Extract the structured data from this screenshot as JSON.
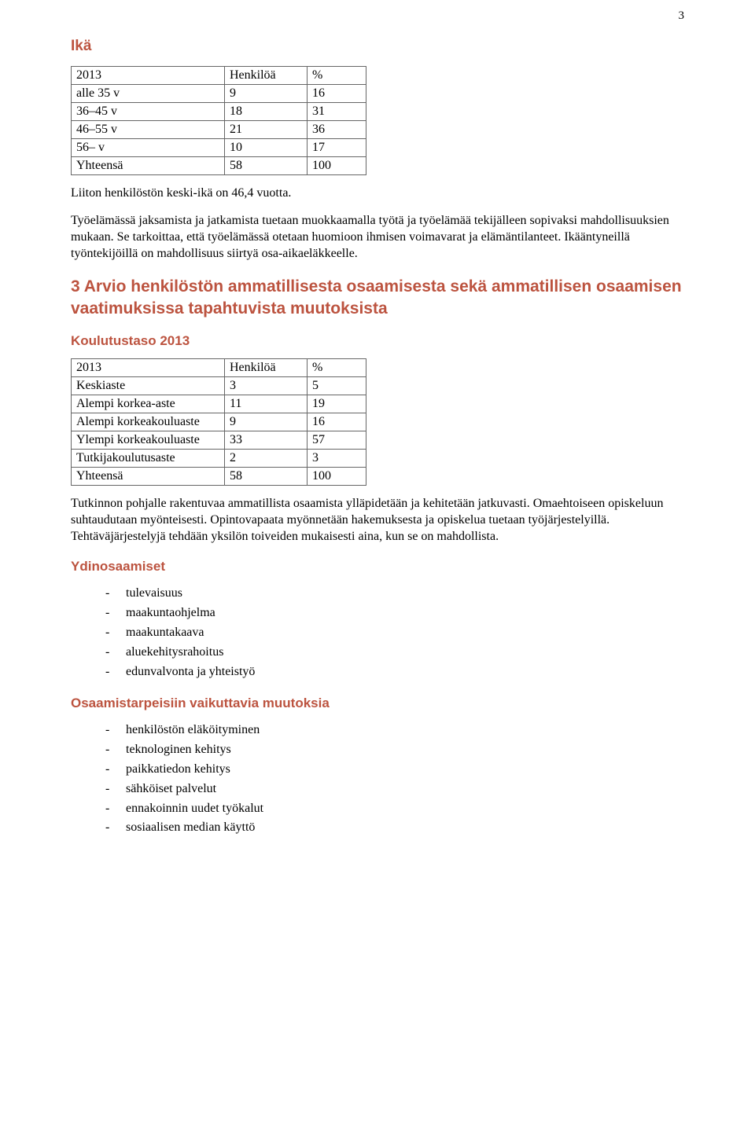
{
  "page_number": "3",
  "heading_ika": "Ikä",
  "table1": {
    "headers": [
      "2013",
      "Henkilöä",
      "%"
    ],
    "rows": [
      [
        "alle 35 v",
        "9",
        "16"
      ],
      [
        "36–45 v",
        "18",
        "31"
      ],
      [
        "46–55 v",
        "21",
        "36"
      ],
      [
        "56– v",
        "10",
        "17"
      ],
      [
        "Yhteensä",
        "58",
        "100"
      ]
    ]
  },
  "para1": "Liiton henkilöstön keski-ikä on 46,4 vuotta.",
  "para2": "Työelämässä jaksamista ja jatkamista tuetaan muokkaamalla työtä ja työelämää tekijälleen sopivaksi mahdollisuuksien mukaan. Se tarkoittaa, että työelämässä otetaan huomioon ihmisen voimavarat ja elämäntilanteet. Ikääntyneillä työntekijöillä on mahdollisuus siirtyä osa-aikaeläkkeelle.",
  "heading_arvio": "3 Arvio henkilöstön ammatillisesta osaamisesta sekä ammatillisen osaamisen vaatimuksissa tapahtuvista muutoksista",
  "sub_koulutustaso": "Koulutustaso 2013",
  "table2": {
    "headers": [
      "2013",
      "Henkilöä",
      "%"
    ],
    "rows": [
      [
        "Keskiaste",
        "3",
        "5"
      ],
      [
        "Alempi korkea-aste",
        "11",
        "19"
      ],
      [
        "Alempi korkeakouluaste",
        "9",
        "16"
      ],
      [
        "Ylempi korkeakouluaste",
        "33",
        "57"
      ],
      [
        "Tutkijakoulutusaste",
        "2",
        "3"
      ],
      [
        "Yhteensä",
        "58",
        "100"
      ]
    ]
  },
  "para3": "Tutkinnon pohjalle rakentuvaa ammatillista osaamista ylläpidetään ja kehitetään jatkuvasti. Omaehtoiseen opiskeluun suhtaudutaan myönteisesti. Opintovapaata myönnetään hakemuksesta ja opiskelua tuetaan työjärjestelyillä. Tehtäväjärjestelyjä tehdään yksilön toiveiden mukaisesti aina, kun se on mahdollista.",
  "sub_ydinosaamiset": "Ydinosaamiset",
  "bullets1": [
    "tulevaisuus",
    "maakuntaohjelma",
    "maakuntakaava",
    "aluekehitysrahoitus",
    "edunvalvonta ja yhteistyö"
  ],
  "sub_osaamistarpeisiin": "Osaamistarpeisiin vaikuttavia muutoksia",
  "bullets2": [
    "henkilöstön eläköityminen",
    "teknologinen kehitys",
    "paikkatiedon kehitys",
    "sähköiset palvelut",
    "ennakoinnin uudet työkalut",
    "sosiaalisen median käyttö"
  ],
  "colors": {
    "heading": "#bc533f",
    "text": "#000000",
    "border": "#666666",
    "background": "#ffffff"
  }
}
